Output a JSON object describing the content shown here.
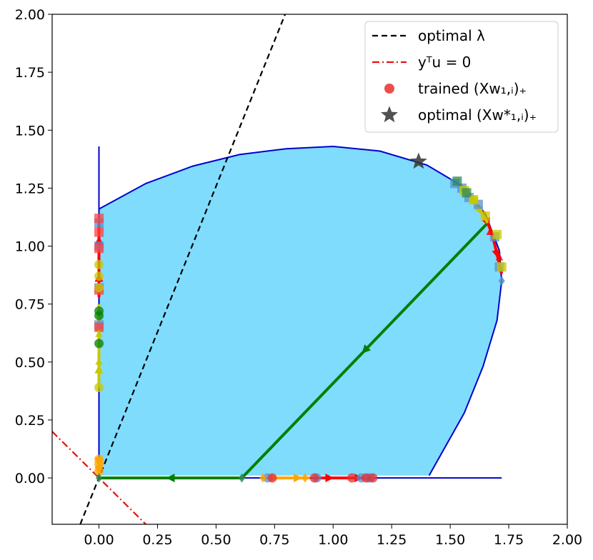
{
  "chart_data": {
    "type": "scatter",
    "xlim": [
      -0.2,
      2.0
    ],
    "ylim": [
      -0.2,
      2.0
    ],
    "xticks": [
      "0.00",
      "0.25",
      "0.50",
      "0.75",
      "1.00",
      "1.25",
      "1.50",
      "1.75",
      "2.00"
    ],
    "yticks": [
      "0.00",
      "0.25",
      "0.50",
      "0.75",
      "1.00",
      "1.25",
      "1.50",
      "1.75",
      "2.00"
    ],
    "grid": false,
    "legend_position": "top-right",
    "legend": [
      {
        "label": "optimal λ",
        "style": "dashed-line",
        "color": "#000000"
      },
      {
        "label": "yᵀu = 0",
        "style": "dashdot-line",
        "color": "#e8110f"
      },
      {
        "label": "trained (Xw₁,ᵢ)₊",
        "style": "circle-marker",
        "color": "#e8110f"
      },
      {
        "label": "optimal (Xw*₁,ᵢ)₊",
        "style": "star-marker",
        "color": "#333333"
      }
    ],
    "region": {
      "fill": "#7fdcfc",
      "stroke": "#0000cd",
      "boundary": [
        [
          0,
          1.16
        ],
        [
          0.2,
          1.27
        ],
        [
          0.4,
          1.345
        ],
        [
          0.6,
          1.395
        ],
        [
          0.8,
          1.42
        ],
        [
          1.0,
          1.43
        ],
        [
          1.2,
          1.41
        ],
        [
          1.4,
          1.35
        ],
        [
          1.55,
          1.26
        ],
        [
          1.65,
          1.14
        ],
        [
          1.71,
          0.98
        ],
        [
          1.72,
          0.85
        ],
        [
          1.7,
          0.68
        ],
        [
          1.64,
          0.48
        ],
        [
          1.56,
          0.28
        ],
        [
          1.41,
          0.01
        ],
        [
          0,
          0.01
        ]
      ]
    },
    "boundary_lines": [
      {
        "points": [
          [
            0,
            0
          ],
          [
            0,
            1.43
          ]
        ],
        "color": "#0000cd"
      },
      {
        "points": [
          [
            0,
            0
          ],
          [
            1.72,
            0
          ]
        ],
        "color": "#0000cd"
      }
    ],
    "optimal_lambda_line": {
      "points": [
        [
          -0.08,
          -0.2
        ],
        [
          0.795,
          2.0
        ]
      ],
      "color": "#000000"
    },
    "yTu_line": {
      "points": [
        [
          -0.2,
          0.2
        ],
        [
          0.2,
          -0.2
        ]
      ],
      "color": "#e8110f"
    },
    "optimal_points": [
      [
        1.365,
        1.365
      ]
    ],
    "trajectories": [
      {
        "color": "#008000",
        "points": [
          [
            1.66,
            1.1
          ],
          [
            0.61,
            0
          ],
          [
            0,
            0
          ]
        ]
      },
      {
        "color": "#c8c800",
        "points": [
          [
            0,
            0.39
          ],
          [
            0,
            0.55
          ],
          [
            0,
            0.75
          ]
        ]
      },
      {
        "color": "#ff0000",
        "points": [
          [
            0,
            0.78
          ],
          [
            0,
            0.95
          ],
          [
            0,
            1.1
          ]
        ]
      },
      {
        "color": "#ff0000",
        "points": [
          [
            1.64,
            1.15
          ],
          [
            1.68,
            1.05
          ],
          [
            1.72,
            0.88
          ]
        ]
      },
      {
        "color": "#c8c800",
        "points": [
          [
            1.55,
            1.26
          ],
          [
            1.6,
            1.2
          ],
          [
            1.66,
            1.1
          ]
        ]
      },
      {
        "color": "#ff0000",
        "points": [
          [
            0.92,
            0
          ],
          [
            1.05,
            0
          ],
          [
            1.17,
            0
          ]
        ]
      },
      {
        "color": "#ffa500",
        "points": [
          [
            0.7,
            0
          ],
          [
            0.8,
            0
          ],
          [
            0.9,
            0
          ]
        ]
      },
      {
        "color": "#ffa500",
        "points": [
          [
            0,
            0.09
          ],
          [
            0,
            0.05
          ],
          [
            0,
            0.01
          ]
        ]
      }
    ],
    "markers": [
      {
        "shape": "square",
        "color": "#5a8fd0",
        "points": [
          [
            0,
            1.1
          ],
          [
            0,
            1.0
          ],
          [
            0,
            0.82
          ],
          [
            0,
            0.66
          ],
          [
            1.52,
            1.27
          ],
          [
            1.55,
            1.25
          ],
          [
            1.58,
            1.21
          ],
          [
            1.62,
            1.18
          ],
          [
            1.69,
            1.04
          ],
          [
            1.71,
            0.91
          ]
        ]
      },
      {
        "shape": "square",
        "color": "#ff4040",
        "points": [
          [
            0,
            1.12
          ],
          [
            0,
            1.06
          ],
          [
            0,
            0.99
          ],
          [
            0,
            0.81
          ],
          [
            0,
            0.65
          ]
        ]
      },
      {
        "shape": "square",
        "color": "#c8c800",
        "points": [
          [
            1.56,
            1.24
          ],
          [
            1.6,
            1.2
          ],
          [
            1.65,
            1.13
          ],
          [
            1.7,
            1.05
          ],
          [
            1.72,
            0.91
          ]
        ]
      },
      {
        "shape": "square",
        "color": "#2e8b57",
        "points": [
          [
            1.53,
            1.28
          ],
          [
            1.57,
            1.23
          ]
        ]
      },
      {
        "shape": "circle",
        "color": "#c8c800",
        "points": [
          [
            0,
            0.92
          ],
          [
            0,
            0.87
          ],
          [
            0,
            0.82
          ],
          [
            0,
            0.39
          ],
          [
            1.6,
            1.2
          ]
        ]
      },
      {
        "shape": "circle",
        "color": "#5a8fd0",
        "points": [
          [
            0.72,
            0
          ],
          [
            0.93,
            0
          ],
          [
            1.12,
            0
          ],
          [
            1.15,
            0
          ],
          [
            1.16,
            0
          ]
        ]
      },
      {
        "shape": "circle",
        "color": "#e83030",
        "points": [
          [
            0.74,
            0
          ],
          [
            0.92,
            0
          ],
          [
            1.08,
            0
          ],
          [
            1.14,
            0
          ],
          [
            1.17,
            0
          ]
        ]
      },
      {
        "shape": "circle",
        "color": "#008000",
        "points": [
          [
            0,
            0.72
          ],
          [
            0,
            0.58
          ],
          [
            0,
            0.7
          ]
        ]
      },
      {
        "shape": "circle",
        "color": "#ffa500",
        "points": [
          [
            0,
            0.08
          ],
          [
            0,
            0.06
          ],
          [
            0,
            0.03
          ]
        ]
      },
      {
        "shape": "diamond",
        "color": "#2e8b57",
        "points": [
          [
            0.61,
            0
          ],
          [
            0,
            0
          ]
        ]
      },
      {
        "shape": "diamond",
        "color": "#ffa500",
        "points": [
          [
            0.7,
            0
          ],
          [
            0.88,
            0
          ],
          [
            0,
            0.05
          ]
        ]
      },
      {
        "shape": "diamond",
        "color": "#5a8fd0",
        "points": [
          [
            1.72,
            0.85
          ]
        ]
      },
      {
        "shape": "triangle",
        "color": "#ff0000",
        "points": [
          [
            1.71,
            0.95
          ],
          [
            1.67,
            1.06
          ]
        ]
      },
      {
        "shape": "triangle",
        "color": "#c8c800",
        "points": [
          [
            0,
            0.5
          ],
          [
            0,
            0.62
          ]
        ]
      }
    ]
  }
}
